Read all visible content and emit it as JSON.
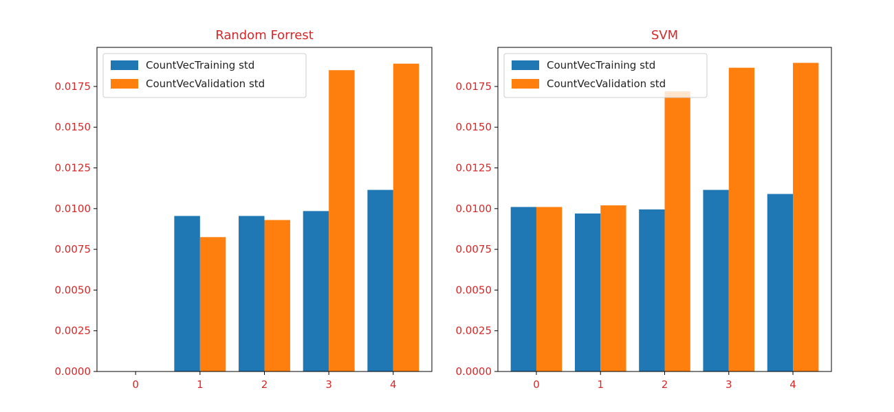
{
  "colors": {
    "training": "#1f77b4",
    "validation": "#ff7f0e",
    "label_text": "#d62728",
    "axes": "#000000"
  },
  "chart_data": [
    {
      "type": "bar",
      "title": "Random Forrest",
      "categories": [
        "0",
        "1",
        "2",
        "3",
        "4"
      ],
      "series": [
        {
          "name": "CountVecTraining std",
          "values": [
            0,
            0.00955,
            0.00955,
            0.00985,
            0.01115
          ]
        },
        {
          "name": "CountVecValidation std",
          "values": [
            0,
            0.00825,
            0.0093,
            0.0185,
            0.0189
          ]
        }
      ],
      "yticks": [
        "0.0000",
        "0.0025",
        "0.0050",
        "0.0075",
        "0.0100",
        "0.0125",
        "0.0150",
        "0.0175"
      ],
      "ylim": [
        0,
        0.0199
      ],
      "grid": false,
      "legend_position": "top-left"
    },
    {
      "type": "bar",
      "title": "SVM",
      "categories": [
        "0",
        "1",
        "2",
        "3",
        "4"
      ],
      "series": [
        {
          "name": "CountVecTraining std",
          "values": [
            0.0101,
            0.0097,
            0.00995,
            0.01115,
            0.0109
          ]
        },
        {
          "name": "CountVecValidation std",
          "values": [
            0.0101,
            0.0102,
            0.0172,
            0.01865,
            0.01895
          ]
        }
      ],
      "yticks": [
        "0.0000",
        "0.0025",
        "0.0050",
        "0.0075",
        "0.0100",
        "0.0125",
        "0.0150",
        "0.0175"
      ],
      "ylim": [
        0,
        0.0199
      ],
      "grid": false,
      "legend_position": "top-left"
    }
  ]
}
